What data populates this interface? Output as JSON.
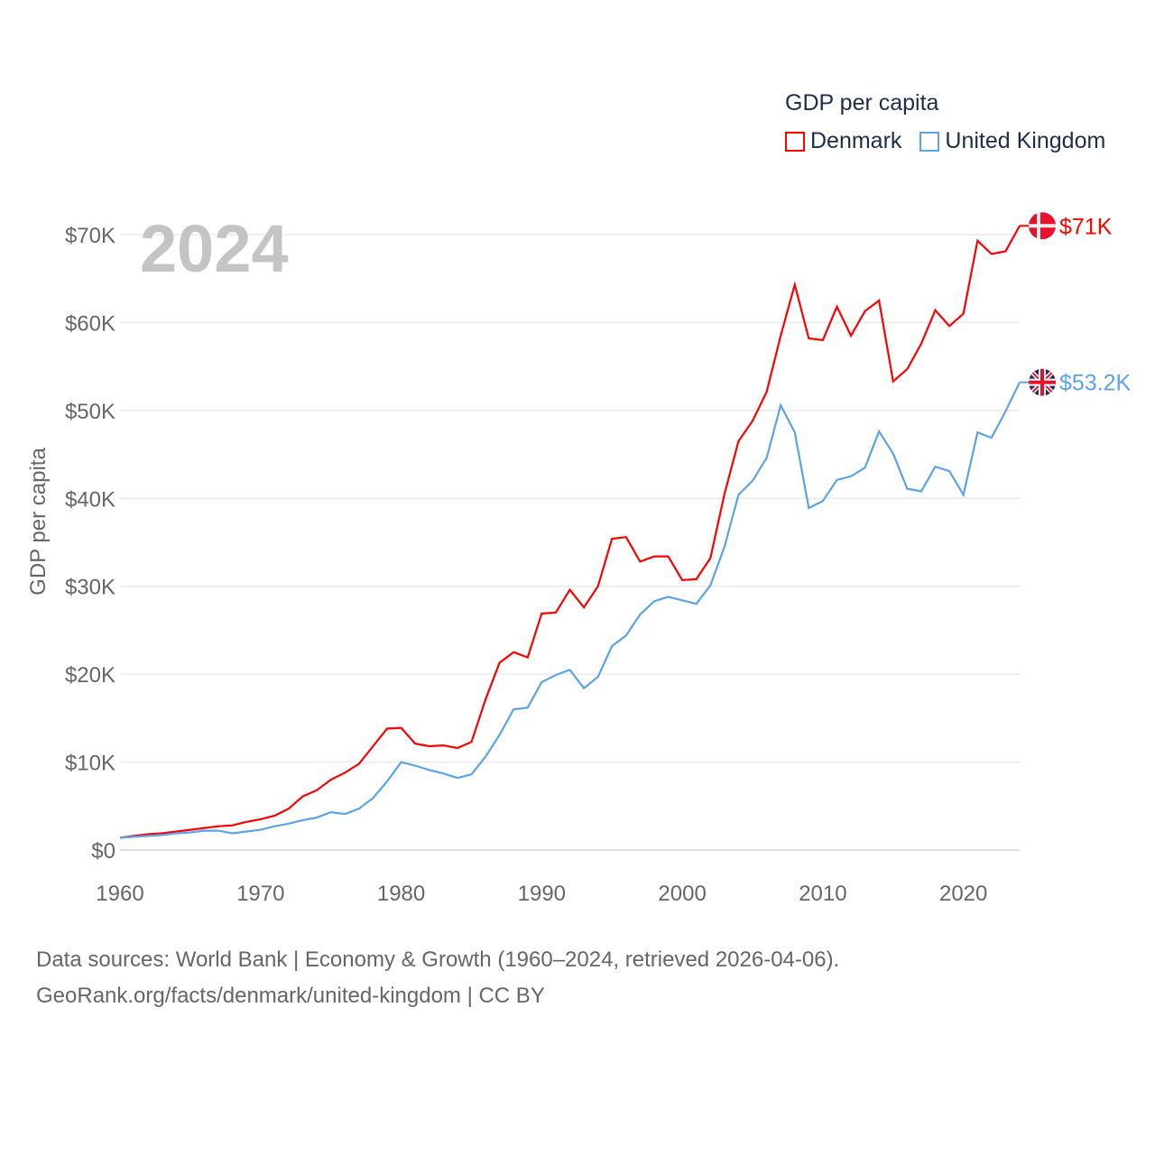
{
  "legend": {
    "title": "GDP per capita",
    "items": [
      "Denmark",
      "United Kingdom"
    ]
  },
  "year_watermark": "2024",
  "footer": {
    "line1": "Data sources: World Bank | Economy & Growth (1960–2024, retrieved 2026-04-06).",
    "line2": "GeoRank.org/facts/denmark/united-kingdom | CC BY"
  },
  "chart_data": {
    "type": "line",
    "title": "GDP per capita",
    "xlabel": "",
    "ylabel": "GDP per capita",
    "xlim": [
      1960,
      2024
    ],
    "ylim": [
      0,
      70000
    ],
    "grid": true,
    "legend_position": "top-right",
    "x_ticks": [
      1960,
      1970,
      1980,
      1990,
      2000,
      2010,
      2020
    ],
    "x_tick_labels": [
      "1960",
      "1970",
      "1980",
      "1990",
      "2000",
      "2010",
      "2020"
    ],
    "y_ticks": [
      0,
      10000,
      20000,
      30000,
      40000,
      50000,
      60000,
      70000
    ],
    "y_tick_labels": [
      "$0",
      "$10K",
      "$20K",
      "$30K",
      "$40K",
      "$50K",
      "$60K",
      "$70K"
    ],
    "x_start": 1960,
    "series": [
      {
        "name": "Denmark",
        "color": "#ff0000",
        "end_label": "$71K",
        "flag": "denmark-flag",
        "values_k": [
          1.4,
          1.6,
          1.8,
          1.9,
          2.1,
          2.3,
          2.5,
          2.7,
          2.8,
          3.2,
          3.5,
          3.9,
          4.7,
          6.1,
          6.8,
          8.0,
          8.8,
          9.8,
          11.8,
          13.8,
          13.9,
          12.1,
          11.8,
          11.9,
          11.6,
          12.3,
          17.1,
          21.3,
          22.5,
          21.9,
          26.9,
          27.0,
          29.6,
          27.6,
          30.0,
          35.4,
          35.6,
          32.8,
          33.4,
          33.4,
          30.7,
          30.8,
          33.2,
          40.5,
          46.5,
          48.8,
          52.1,
          58.5,
          64.3,
          58.2,
          58.0,
          61.8,
          58.5,
          61.3,
          62.5,
          53.3,
          54.7,
          57.6,
          61.4,
          59.6,
          61.0,
          69.3,
          67.8,
          68.1,
          71.0
        ]
      },
      {
        "name": "United Kingdom",
        "color": "#5ba3ea",
        "end_label": "$53.2K",
        "flag": "uk-flag",
        "values_k": [
          1.4,
          1.5,
          1.6,
          1.7,
          1.9,
          2.0,
          2.2,
          2.2,
          1.9,
          2.1,
          2.3,
          2.7,
          3.0,
          3.4,
          3.7,
          4.3,
          4.1,
          4.7,
          5.9,
          7.8,
          10.0,
          9.6,
          9.1,
          8.7,
          8.2,
          8.6,
          10.6,
          13.1,
          16.0,
          16.2,
          19.1,
          19.9,
          20.5,
          18.4,
          19.7,
          23.2,
          24.4,
          26.8,
          28.3,
          28.8,
          28.4,
          28.0,
          30.1,
          34.5,
          40.4,
          42.0,
          44.6,
          50.6,
          47.5,
          38.9,
          39.7,
          42.1,
          42.5,
          43.5,
          47.6,
          45.1,
          41.1,
          40.8,
          43.6,
          43.1,
          40.4,
          47.5,
          46.9,
          49.9,
          53.2
        ]
      }
    ]
  }
}
